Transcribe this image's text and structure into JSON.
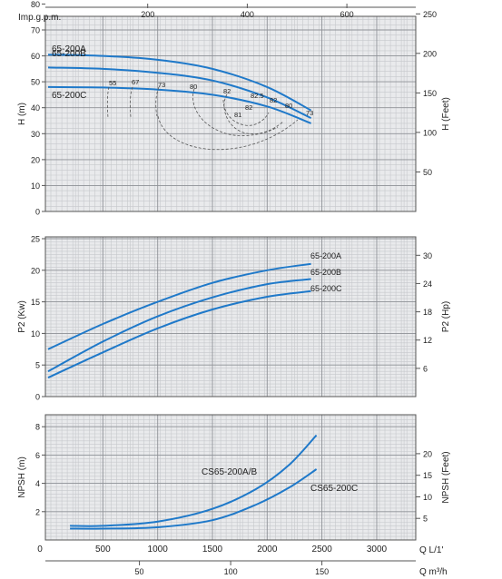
{
  "chart_data": [
    {
      "type": "line",
      "id": "head",
      "ylabel": "H (m)",
      "ylabel_right": "H (Feet)",
      "x_unit_top": "Imp.g.p.m.",
      "x_ticks_top": [
        "200",
        "400",
        "600"
      ],
      "x_range": [
        0,
        3000
      ],
      "y_ticks": [
        "0",
        "10",
        "20",
        "30",
        "40",
        "50",
        "60",
        "70",
        "80"
      ],
      "y_ticks_right": [
        "50",
        "100",
        "150",
        "200",
        "250"
      ],
      "ylim": [
        0,
        85
      ],
      "grid": true,
      "series": [
        {
          "name": "65-200A",
          "x": [
            0,
            500,
            1000,
            1500,
            2000,
            2400
          ],
          "y": [
            60.5,
            60,
            58.5,
            55,
            48,
            39
          ]
        },
        {
          "name": "65-200B",
          "x": [
            0,
            500,
            1000,
            1500,
            2000,
            2400
          ],
          "y": [
            55.5,
            55,
            53.5,
            50.5,
            44,
            36
          ]
        },
        {
          "name": "65-200C",
          "x": [
            0,
            500,
            1000,
            1500,
            2000,
            2400
          ],
          "y": [
            48,
            47.8,
            47,
            45,
            40.5,
            34
          ]
        }
      ],
      "efficiency_labels": [
        "55",
        "67",
        "73",
        "80",
        "82",
        "82.5",
        "82",
        "82",
        "81",
        "80",
        "73"
      ]
    },
    {
      "type": "line",
      "id": "power",
      "ylabel": "P2 (Kw)",
      "ylabel_right": "P2 (Hp)",
      "y_ticks": [
        "0",
        "5",
        "10",
        "15",
        "20",
        "25"
      ],
      "y_ticks_right": [
        "6",
        "12",
        "18",
        "24",
        "30"
      ],
      "ylim": [
        0,
        25
      ],
      "grid": true,
      "series": [
        {
          "name": "65-200A",
          "x": [
            0,
            500,
            1000,
            1500,
            2000,
            2400
          ],
          "y": [
            7.5,
            11.5,
            15,
            18,
            20,
            21
          ]
        },
        {
          "name": "65-200B",
          "x": [
            0,
            500,
            1000,
            1500,
            2000,
            2400
          ],
          "y": [
            4,
            8.7,
            12.7,
            15.7,
            17.8,
            18.6
          ]
        },
        {
          "name": "65-200C",
          "x": [
            0,
            500,
            1000,
            1500,
            2000,
            2400
          ],
          "y": [
            3,
            7,
            10.8,
            13.8,
            15.8,
            16.7
          ]
        }
      ]
    },
    {
      "type": "line",
      "id": "npsh",
      "ylabel": "NPSH (m)",
      "ylabel_right": "NPSH (Feet)",
      "xlabel": "Q L/1'",
      "xlabel2": "Q m³/h",
      "x_ticks": [
        "0",
        "500",
        "1000",
        "1500",
        "2000",
        "2500",
        "3000"
      ],
      "x_ticks_bottom": [
        "50",
        "100",
        "150"
      ],
      "y_ticks": [
        "2",
        "4",
        "6",
        "8"
      ],
      "y_ticks_right": [
        "5",
        "10",
        "15",
        "20"
      ],
      "ylim": [
        0,
        8
      ],
      "grid": true,
      "series": [
        {
          "name": "CS65-200A/B",
          "x": [
            200,
            500,
            1000,
            1500,
            1900,
            2200,
            2450
          ],
          "y": [
            1,
            1,
            1.3,
            2.2,
            3.6,
            5.3,
            7.4
          ]
        },
        {
          "name": "CS65-200C",
          "x": [
            200,
            500,
            1000,
            1500,
            1900,
            2200,
            2450
          ],
          "y": [
            0.8,
            0.8,
            0.9,
            1.4,
            2.5,
            3.7,
            5
          ]
        }
      ]
    }
  ]
}
